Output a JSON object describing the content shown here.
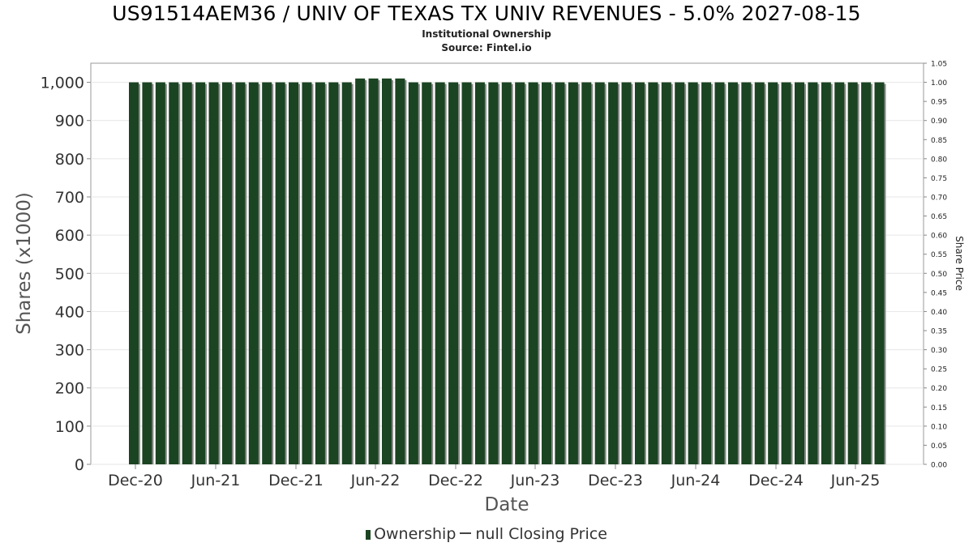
{
  "title": "US91514AEM36 / UNIV OF TEXAS TX UNIV REVENUES - 5.0% 2027-08-15",
  "subtitle": "Institutional Ownership",
  "source": "Source: Fintel.io",
  "legend": {
    "ownership_label": "Ownership",
    "price_label": "null Closing Price"
  },
  "colors": {
    "bar": "#1b4422",
    "bar_shadow": "#8a8a8a",
    "grid": "#e6e6e6",
    "frame": "#9a9a9a"
  },
  "chart_data": {
    "type": "bar",
    "title": "US91514AEM36 / UNIV OF TEXAS TX UNIV REVENUES - 5.0% 2027-08-15",
    "xlabel": "Date",
    "ylabel": "Shares (x1000)",
    "y2label": "Share Price",
    "ylim": [
      0,
      1050
    ],
    "y2lim": [
      0,
      1.05
    ],
    "yticks": [
      "0",
      "100",
      "200",
      "300",
      "400",
      "500",
      "600",
      "700",
      "800",
      "900",
      "1,000"
    ],
    "y2ticks": [
      "0.00",
      "0.05",
      "0.10",
      "0.15",
      "0.20",
      "0.25",
      "0.30",
      "0.35",
      "0.40",
      "0.45",
      "0.50",
      "0.55",
      "0.60",
      "0.65",
      "0.70",
      "0.75",
      "0.80",
      "0.85",
      "0.90",
      "0.95",
      "1.00",
      "1.05"
    ],
    "xticks": [
      "Dec-20",
      "Jun-21",
      "Dec-21",
      "Jun-22",
      "Dec-22",
      "Jun-23",
      "Dec-23",
      "Jun-24",
      "Dec-24",
      "Jun-25"
    ],
    "grid": true,
    "legend_position": "bottom",
    "series": [
      {
        "name": "Ownership",
        "values": [
          1000,
          1000,
          1000,
          1000,
          1000,
          1000,
          1000,
          1000,
          1000,
          1000,
          1000,
          1000,
          1000,
          1000,
          1000,
          1000,
          1000,
          1010,
          1010,
          1010,
          1010,
          1000,
          1000,
          1000,
          1000,
          1000,
          1000,
          1000,
          1000,
          1000,
          1000,
          1000,
          1000,
          1000,
          1000,
          1000,
          1000,
          1000,
          1000,
          1000,
          1000,
          1000,
          1000,
          1000,
          1000,
          1000,
          1000,
          1000,
          1000,
          1000,
          1000,
          1000,
          1000,
          1000,
          1000,
          1000,
          1000
        ]
      }
    ]
  }
}
